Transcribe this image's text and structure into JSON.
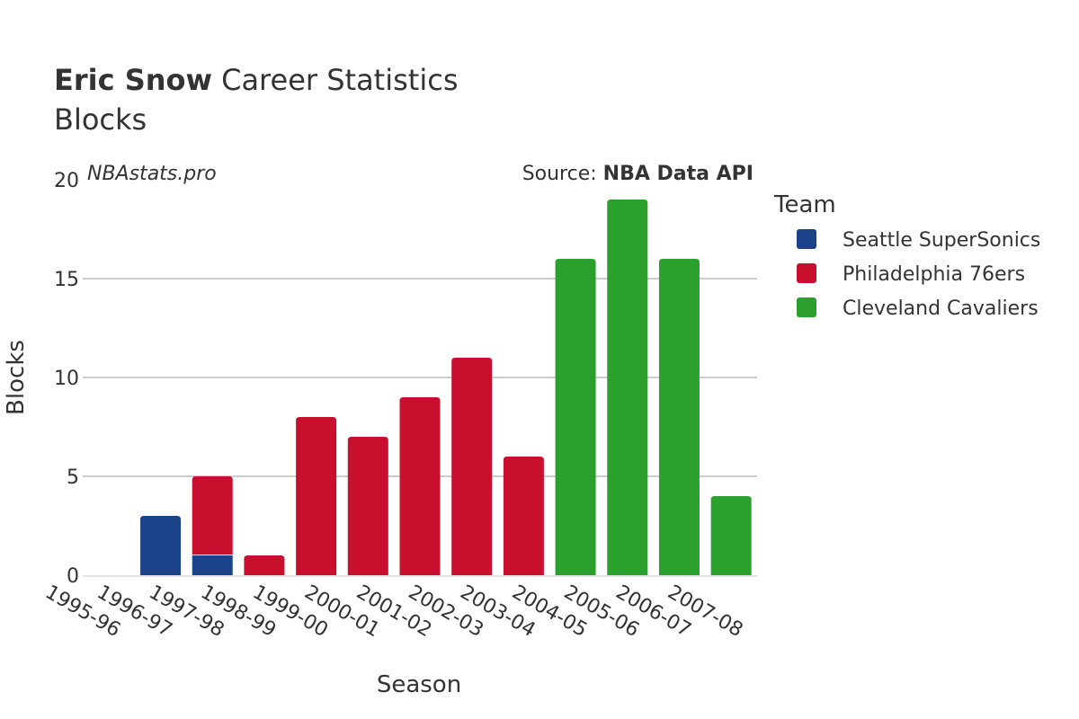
{
  "header": {
    "player_name": "Eric Snow",
    "title_rest": "Career Statistics",
    "subtitle": "Blocks",
    "watermark": "NBAstats.pro",
    "source_label": "Source: ",
    "source_value": "NBA Data API"
  },
  "chart_data": {
    "type": "bar",
    "stacked": true,
    "title": "Eric Snow Career Statistics",
    "subtitle": "Blocks",
    "xlabel": "Season",
    "ylabel": "Blocks",
    "ylim": [
      0,
      20
    ],
    "yticks": [
      0,
      5,
      10,
      15,
      20
    ],
    "grid": true,
    "legend_placement": "right",
    "legend_title": "Team",
    "categories": [
      "1995-96",
      "1996-97",
      "1997-98",
      "1998-99",
      "1999-00",
      "2000-01",
      "2001-02",
      "2002-03",
      "2003-04",
      "2004-05",
      "2005-06",
      "2006-07",
      "2007-08"
    ],
    "series": [
      {
        "name": "Seattle SuperSonics",
        "color": "#1c428a",
        "values": [
          0,
          3,
          1,
          0,
          0,
          0,
          0,
          0,
          0,
          0,
          0,
          0,
          0
        ]
      },
      {
        "name": "Philadelphia 76ers",
        "color": "#c8102e",
        "values": [
          0,
          0,
          4,
          1,
          8,
          7,
          9,
          11,
          6,
          0,
          0,
          0,
          0
        ]
      },
      {
        "name": "Cleveland Cavaliers",
        "color": "#2ca02c",
        "values": [
          0,
          0,
          0,
          0,
          0,
          0,
          0,
          0,
          0,
          16,
          19,
          16,
          4
        ]
      }
    ]
  }
}
